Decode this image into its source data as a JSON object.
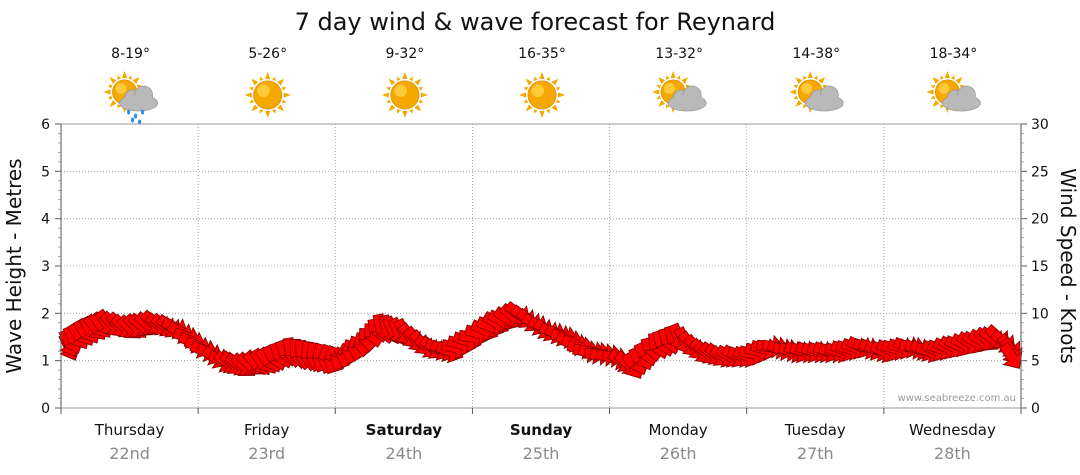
{
  "title": "7 day wind & wave forecast for Reynard",
  "watermark": "www.seabreeze.com.au",
  "colors": {
    "arrow": "#ff0000",
    "grid": "#9a9a9a",
    "sun": "#f4a800",
    "cloud": "#b9b9b9",
    "rain": "#2a8fe8"
  },
  "days": [
    {
      "name": "Thursday",
      "date": "22nd",
      "temp": "8-19°",
      "weather_icon": "sun-cloud-rain-icon",
      "bold": false
    },
    {
      "name": "Friday",
      "date": "23rd",
      "temp": "5-26°",
      "weather_icon": "sun-icon",
      "bold": false
    },
    {
      "name": "Saturday",
      "date": "24th",
      "temp": "9-32°",
      "weather_icon": "sun-icon",
      "bold": true
    },
    {
      "name": "Sunday",
      "date": "25th",
      "temp": "16-35°",
      "weather_icon": "sun-icon",
      "bold": true
    },
    {
      "name": "Monday",
      "date": "26th",
      "temp": "13-32°",
      "weather_icon": "sun-cloud-icon",
      "bold": false
    },
    {
      "name": "Tuesday",
      "date": "27th",
      "temp": "14-38°",
      "weather_icon": "sun-cloud-icon",
      "bold": false
    },
    {
      "name": "Wednesday",
      "date": "28th",
      "temp": "18-34°",
      "weather_icon": "sun-cloud-icon",
      "bold": false
    }
  ],
  "chart_data": {
    "type": "line",
    "title": "7 day wind & wave forecast for Reynard",
    "x_categories": [
      "Thursday 22nd",
      "Friday 23rd",
      "Saturday 24th",
      "Sunday 25th",
      "Monday 26th",
      "Tuesday 27th",
      "Wednesday 28th"
    ],
    "left_axis": {
      "label": "Wave Height - Metres",
      "ylim": [
        0,
        6
      ],
      "ticks": [
        "0",
        "1",
        "2",
        "3",
        "4",
        "5",
        "6"
      ]
    },
    "right_axis": {
      "label": "Wind Speed - Knots",
      "ylim": [
        0,
        30
      ],
      "ticks": [
        "0",
        "5",
        "10",
        "15",
        "20",
        "25",
        "30"
      ]
    },
    "grid": true,
    "series": [
      {
        "name": "",
        "axis": "right",
        "unit": "knots",
        "x_day": [
          0.0,
          0.17,
          0.33,
          0.5,
          0.67,
          0.83,
          1.0,
          1.17,
          1.33,
          1.5,
          1.67,
          1.83,
          2.0,
          2.17,
          2.33,
          2.5,
          2.67,
          2.83,
          3.0,
          3.17,
          3.33,
          3.5,
          3.67,
          3.83,
          4.0,
          4.17,
          4.33,
          4.5,
          4.67,
          4.83,
          5.0,
          5.17,
          5.33,
          5.5,
          5.67,
          5.83,
          6.0,
          6.17,
          6.33,
          6.5,
          6.67,
          6.83,
          7.0
        ],
        "values": [
          6.5,
          8,
          9,
          8.5,
          9,
          8.5,
          6.5,
          5,
          4.5,
          5,
          6,
          5.5,
          5,
          6.5,
          8.5,
          8,
          6.5,
          6,
          7.5,
          9,
          10,
          8.5,
          7.5,
          6,
          5.5,
          4.5,
          6.5,
          7.5,
          6,
          5.5,
          5.5,
          6.5,
          6,
          6,
          6,
          6.5,
          6,
          6.5,
          6,
          6.5,
          7,
          7.5,
          5.5
        ],
        "direction_deg": [
          70,
          60,
          50,
          45,
          40,
          30,
          20,
          30,
          40,
          60,
          80,
          100,
          120,
          100,
          80,
          60,
          40,
          20,
          10,
          30,
          40,
          30,
          20,
          10,
          0,
          60,
          80,
          70,
          45,
          30,
          20,
          10,
          15,
          20,
          15,
          20,
          25,
          15,
          20,
          25,
          30,
          40,
          60
        ]
      }
    ]
  }
}
